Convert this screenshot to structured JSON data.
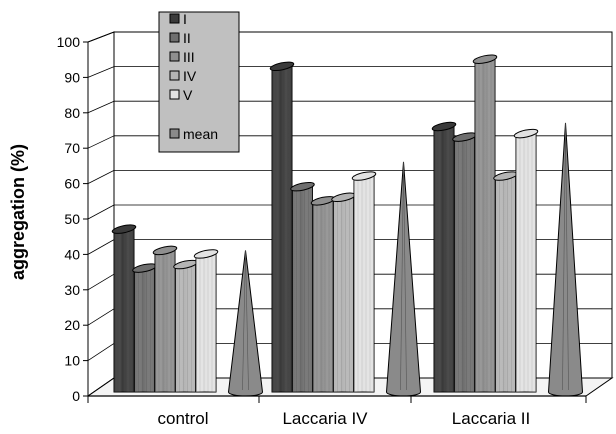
{
  "chart_data": {
    "type": "bar",
    "title": "",
    "xlabel": "",
    "ylabel": "aggregation (%)",
    "ylim": [
      0,
      100
    ],
    "ytick_step": 10,
    "grid": true,
    "legend_position": "top-left",
    "categories": [
      "control",
      "Laccaria IV",
      "Laccaria II"
    ],
    "series": [
      {
        "name": "I",
        "shape": "cylinder",
        "color": "#3a3a3a",
        "values": [
          46,
          92,
          75
        ]
      },
      {
        "name": "II",
        "shape": "cylinder",
        "color": "#6e6e6e",
        "values": [
          35,
          58,
          72
        ]
      },
      {
        "name": "III",
        "shape": "cylinder",
        "color": "#8f8f8f",
        "values": [
          40,
          54,
          94
        ]
      },
      {
        "name": "IV",
        "shape": "cylinder",
        "color": "#b4b4b4",
        "values": [
          36,
          55,
          61
        ]
      },
      {
        "name": "V",
        "shape": "cylinder",
        "color": "#e2e2e2",
        "values": [
          39,
          61,
          73
        ]
      },
      {
        "name": "mean",
        "shape": "cone",
        "color": "#8a8a8a",
        "values": [
          40,
          65,
          76
        ]
      }
    ]
  }
}
